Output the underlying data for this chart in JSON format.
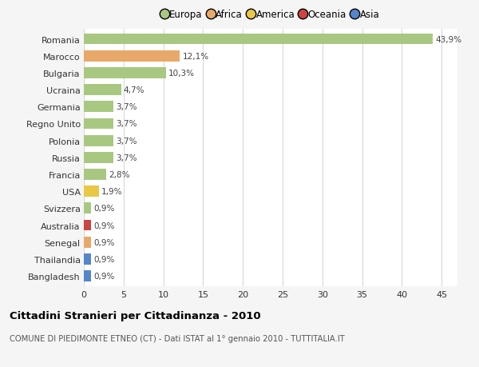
{
  "categories": [
    "Romania",
    "Marocco",
    "Bulgaria",
    "Ucraina",
    "Germania",
    "Regno Unito",
    "Polonia",
    "Russia",
    "Francia",
    "USA",
    "Svizzera",
    "Australia",
    "Senegal",
    "Thailandia",
    "Bangladesh"
  ],
  "values": [
    43.9,
    12.1,
    10.3,
    4.7,
    3.7,
    3.7,
    3.7,
    3.7,
    2.8,
    1.9,
    0.9,
    0.9,
    0.9,
    0.9,
    0.9
  ],
  "labels": [
    "43,9%",
    "12,1%",
    "10,3%",
    "4,7%",
    "3,7%",
    "3,7%",
    "3,7%",
    "3,7%",
    "2,8%",
    "1,9%",
    "0,9%",
    "0,9%",
    "0,9%",
    "0,9%",
    "0,9%"
  ],
  "continents": [
    "Europa",
    "Africa",
    "Europa",
    "Europa",
    "Europa",
    "Europa",
    "Europa",
    "Europa",
    "Europa",
    "America",
    "Europa",
    "Oceania",
    "Africa",
    "Asia",
    "Asia"
  ],
  "continent_colors": {
    "Europa": "#a8c882",
    "Africa": "#e8a86a",
    "America": "#e8c845",
    "Oceania": "#cc4444",
    "Asia": "#5585cc"
  },
  "legend_order": [
    "Europa",
    "Africa",
    "America",
    "Oceania",
    "Asia"
  ],
  "legend_colors": [
    "#a8c882",
    "#e8a86a",
    "#e8c845",
    "#cc4444",
    "#5585cc"
  ],
  "title": "Cittadini Stranieri per Cittadinanza - 2010",
  "subtitle": "COMUNE DI PIEDIMONTE ETNEO (CT) - Dati ISTAT al 1° gennaio 2010 - TUTTITALIA.IT",
  "xlim": [
    0,
    47
  ],
  "xticks": [
    0,
    5,
    10,
    15,
    20,
    25,
    30,
    35,
    40,
    45
  ],
  "background_color": "#f5f5f5",
  "bar_background": "#ffffff",
  "grid_color": "#d8d8d8"
}
